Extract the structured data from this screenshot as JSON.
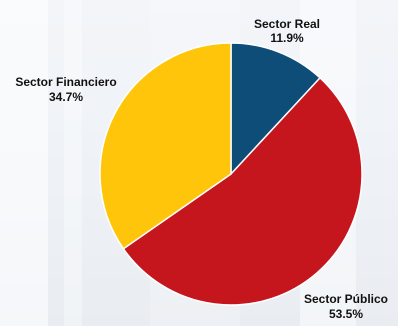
{
  "chart_data": {
    "type": "pie",
    "series": [
      {
        "name": "Sector Real",
        "value": 11.9,
        "value_label": "11.9%",
        "color": "#0d4d77"
      },
      {
        "name": "Sector Público",
        "value": 53.5,
        "value_label": "53.5%",
        "color": "#c5161d"
      },
      {
        "name": "Sector Financiero",
        "value": 34.7,
        "value_label": "34.7%",
        "color": "#fec50b"
      }
    ],
    "start_angle_deg": 0,
    "direction": "clockwise",
    "legend": "none",
    "labels": "outside"
  }
}
